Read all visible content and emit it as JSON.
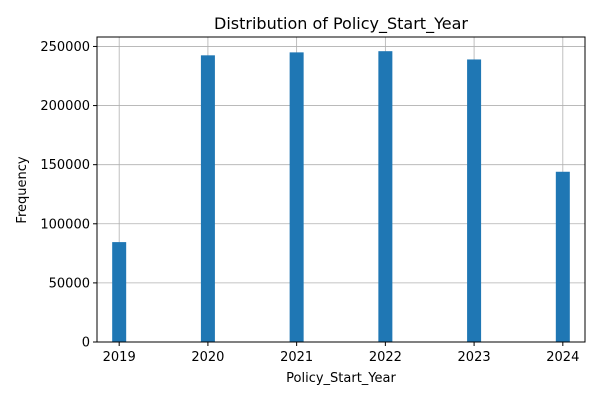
{
  "chart_data": {
    "type": "bar",
    "title": "Distribution of Policy_Start_Year",
    "xlabel": "Policy_Start_Year",
    "ylabel": "Frequency",
    "categories": [
      "2019",
      "2020",
      "2021",
      "2022",
      "2023",
      "2024"
    ],
    "x": [
      2019,
      2020,
      2021,
      2022,
      2023,
      2024
    ],
    "values": [
      84500,
      242500,
      245000,
      246000,
      239000,
      144000
    ],
    "xlim": [
      2018.75,
      2024.25
    ],
    "ylim": [
      0,
      258000
    ],
    "yticks": [
      0,
      50000,
      100000,
      150000,
      200000,
      250000
    ],
    "ytick_labels": [
      "0",
      "50000",
      "100000",
      "150000",
      "200000",
      "250000"
    ],
    "grid": true,
    "bar_color": "#1f77b4"
  }
}
